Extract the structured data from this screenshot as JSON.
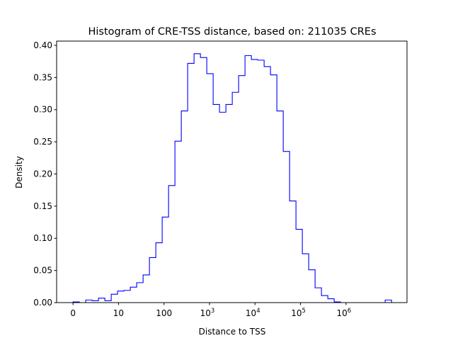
{
  "chart_data": {
    "type": "histogram-step",
    "title": "Histogram of CRE-TSS distance, based on: 211035 CREs",
    "xlabel": "Distance to TSS",
    "ylabel": "Density",
    "x_scale": "log10(distance+1)",
    "bin_range_log10": [
      0,
      7
    ],
    "bin_count": 50,
    "xlim_log10": [
      -0.36,
      7.34
    ],
    "ylim": [
      0,
      0.4066
    ],
    "x_ticks": [
      {
        "pos": 0,
        "label": "0",
        "sup": ""
      },
      {
        "pos": 1,
        "label": "10",
        "sup": ""
      },
      {
        "pos": 2,
        "label": "100",
        "sup": ""
      },
      {
        "pos": 3,
        "label": "10",
        "sup": "3"
      },
      {
        "pos": 4,
        "label": "10",
        "sup": "4"
      },
      {
        "pos": 5,
        "label": "10",
        "sup": "5"
      },
      {
        "pos": 6,
        "label": "10",
        "sup": "6"
      }
    ],
    "y_ticks": [
      "0.00",
      "0.05",
      "0.10",
      "0.15",
      "0.20",
      "0.25",
      "0.30",
      "0.35",
      "0.40"
    ],
    "densities": [
      0.001,
      0.0,
      0.004,
      0.003,
      0.007,
      0.003,
      0.013,
      0.018,
      0.019,
      0.024,
      0.031,
      0.043,
      0.07,
      0.093,
      0.133,
      0.182,
      0.251,
      0.298,
      0.372,
      0.387,
      0.381,
      0.356,
      0.308,
      0.296,
      0.308,
      0.327,
      0.353,
      0.384,
      0.378,
      0.377,
      0.367,
      0.354,
      0.298,
      0.235,
      0.158,
      0.114,
      0.076,
      0.051,
      0.023,
      0.011,
      0.006,
      0.001,
      0,
      0,
      0,
      0,
      0,
      0,
      0,
      0.004
    ],
    "line_color": "#0000ff",
    "grid": false
  }
}
